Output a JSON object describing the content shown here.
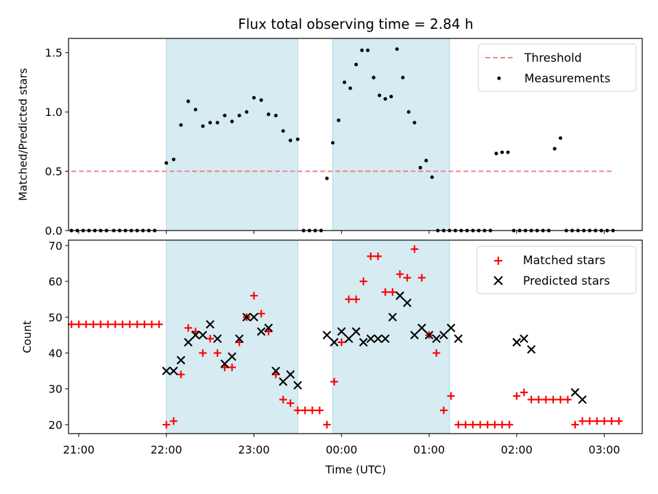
{
  "chart_data": [
    {
      "type": "scatter",
      "title": "Flux total observing time = 2.84 h",
      "xlabel": "",
      "ylabel": "Matched/Predicted stars",
      "ylim": [
        0,
        1.62
      ],
      "yticks": [
        0.0,
        0.5,
        1.0,
        1.5
      ],
      "ytick_labels": [
        "0.0",
        "0.5",
        "1.0",
        "1.5"
      ],
      "xlim": [
        "20:53",
        "03:26"
      ],
      "xticks": [
        "21:00",
        "22:00",
        "23:00",
        "00:00",
        "01:00",
        "02:00",
        "03:00"
      ],
      "x_unit": "time (UTC), hours before midnight shown as 21:00-23:59, after as 00:00-03:26",
      "grid": false,
      "legend": "top-right",
      "shaded_intervals": [
        [
          "22:00",
          "23:30"
        ],
        [
          "23:54",
          "01:14"
        ]
      ],
      "colors": {
        "threshold": "#f08080",
        "measurements": "#000000",
        "shade": "#add8e6"
      },
      "series": [
        {
          "name": "Threshold",
          "style": "dashed-line",
          "x": [
            "20:55",
            "03:05"
          ],
          "y": [
            0.5,
            0.5
          ]
        },
        {
          "name": "Measurements",
          "style": "dots",
          "x": [
            "20:55",
            "20:59",
            "21:03",
            "21:07",
            "21:11",
            "21:15",
            "21:19",
            "21:24",
            "21:28",
            "21:32",
            "21:36",
            "21:40",
            "21:44",
            "21:48",
            "21:52",
            "22:00",
            "22:05",
            "22:10",
            "22:15",
            "22:20",
            "22:25",
            "22:30",
            "22:35",
            "22:40",
            "22:45",
            "22:50",
            "22:55",
            "23:00",
            "23:05",
            "23:10",
            "23:15",
            "23:20",
            "23:25",
            "23:30",
            "23:34",
            "23:38",
            "23:42",
            "23:46",
            "23:50",
            "23:54",
            "23:58",
            "00:02",
            "00:06",
            "00:10",
            "00:14",
            "00:18",
            "00:22",
            "00:26",
            "00:30",
            "00:34",
            "00:38",
            "00:42",
            "00:46",
            "00:50",
            "00:54",
            "00:58",
            "01:02",
            "01:06",
            "01:10",
            "01:14",
            "01:18",
            "01:22",
            "01:26",
            "01:30",
            "01:34",
            "01:38",
            "01:42",
            "01:46",
            "01:50",
            "01:54",
            "01:58",
            "02:02",
            "02:06",
            "02:10",
            "02:14",
            "02:18",
            "02:22",
            "02:26",
            "02:30",
            "02:34",
            "02:38",
            "02:42",
            "02:46",
            "02:50",
            "02:54",
            "02:58",
            "03:02",
            "03:06"
          ],
          "y": [
            0,
            0,
            0,
            0,
            0,
            0,
            0,
            0,
            0,
            0,
            0,
            0,
            0,
            0,
            0,
            0.57,
            0.6,
            0.89,
            1.09,
            1.02,
            0.88,
            0.91,
            0.91,
            0.97,
            0.92,
            0.97,
            1.0,
            1.12,
            1.1,
            0.98,
            0.97,
            0.84,
            0.76,
            0.77,
            0,
            0,
            0,
            0,
            0.44,
            0.74,
            0.93,
            1.25,
            1.2,
            1.4,
            1.52,
            1.52,
            1.29,
            1.14,
            1.11,
            1.13,
            1.53,
            1.29,
            1.0,
            0.91,
            0.53,
            0.59,
            0.45,
            0,
            0,
            0,
            0,
            0,
            0,
            0,
            0,
            0,
            0,
            0.65,
            0.66,
            0.66,
            0,
            0,
            0,
            0,
            0,
            0,
            0,
            0.69,
            0.78,
            0,
            0,
            0,
            0,
            0,
            0,
            0,
            0,
            0
          ]
        }
      ]
    },
    {
      "type": "scatter",
      "title": "",
      "xlabel": "Time (UTC)",
      "ylabel": "Count",
      "ylim": [
        17.5,
        71.5
      ],
      "yticks": [
        20,
        30,
        40,
        50,
        60,
        70
      ],
      "ytick_labels": [
        "20",
        "30",
        "40",
        "50",
        "60",
        "70"
      ],
      "xlim": [
        "20:53",
        "03:26"
      ],
      "xticks": [
        "21:00",
        "22:00",
        "23:00",
        "00:00",
        "01:00",
        "02:00",
        "03:00"
      ],
      "xtick_labels": [
        "21:00",
        "22:00",
        "23:00",
        "00:00",
        "01:00",
        "02:00",
        "03:00"
      ],
      "grid": false,
      "legend": "top-right",
      "shaded_intervals": [
        [
          "22:00",
          "23:30"
        ],
        [
          "23:54",
          "01:14"
        ]
      ],
      "colors": {
        "matched": "#ff0000",
        "predicted": "#000000",
        "shade": "#add8e6"
      },
      "series": [
        {
          "name": "Matched stars",
          "marker": "plus",
          "x": [
            "20:55",
            "21:00",
            "21:05",
            "21:10",
            "21:15",
            "21:20",
            "21:25",
            "21:30",
            "21:35",
            "21:40",
            "21:45",
            "21:50",
            "21:55",
            "22:00",
            "22:05",
            "22:10",
            "22:15",
            "22:20",
            "22:25",
            "22:30",
            "22:35",
            "22:40",
            "22:45",
            "22:50",
            "22:55",
            "23:00",
            "23:05",
            "23:10",
            "23:15",
            "23:20",
            "23:25",
            "23:30",
            "23:35",
            "23:40",
            "23:45",
            "23:50",
            "23:55",
            "00:00",
            "00:05",
            "00:10",
            "00:15",
            "00:20",
            "00:25",
            "00:30",
            "00:35",
            "00:40",
            "00:45",
            "00:50",
            "00:55",
            "01:00",
            "01:05",
            "01:10",
            "01:15",
            "01:20",
            "01:25",
            "01:30",
            "01:35",
            "01:40",
            "01:45",
            "01:50",
            "01:55",
            "02:00",
            "02:05",
            "02:10",
            "02:15",
            "02:20",
            "02:25",
            "02:30",
            "02:35",
            "02:40",
            "02:45",
            "02:50",
            "02:55",
            "03:00",
            "03:05",
            "03:10"
          ],
          "y": [
            48,
            48,
            48,
            48,
            48,
            48,
            48,
            48,
            48,
            48,
            48,
            48,
            48,
            20,
            21,
            34,
            47,
            46,
            40,
            44,
            40,
            36,
            36,
            43,
            50,
            56,
            51,
            46,
            34,
            27,
            26,
            24,
            24,
            24,
            24,
            20,
            32,
            43,
            55,
            55,
            60,
            67,
            67,
            57,
            57,
            62,
            61,
            69,
            61,
            45,
            40,
            24,
            28,
            20,
            20,
            20,
            20,
            20,
            20,
            20,
            20,
            28,
            29,
            27,
            27,
            27,
            27,
            27,
            27,
            20,
            21,
            21,
            21,
            21,
            21,
            21
          ]
        },
        {
          "name": "Predicted stars",
          "marker": "x",
          "x": [
            "22:00",
            "22:05",
            "22:10",
            "22:15",
            "22:20",
            "22:25",
            "22:30",
            "22:35",
            "22:40",
            "22:45",
            "22:50",
            "22:55",
            "23:00",
            "23:05",
            "23:10",
            "23:15",
            "23:20",
            "23:25",
            "23:30",
            "23:50",
            "23:55",
            "00:00",
            "00:05",
            "00:10",
            "00:15",
            "00:20",
            "00:25",
            "00:30",
            "00:35",
            "00:40",
            "00:45",
            "00:50",
            "00:55",
            "01:00",
            "01:05",
            "01:10",
            "01:15",
            "01:20",
            "02:00",
            "02:05",
            "02:10",
            "02:40",
            "02:45"
          ],
          "y": [
            35,
            35,
            38,
            43,
            45,
            45,
            48,
            44,
            37,
            39,
            44,
            50,
            50,
            46,
            47,
            35,
            32,
            34,
            31,
            45,
            43,
            46,
            44,
            46,
            43,
            44,
            44,
            44,
            50,
            56,
            54,
            45,
            47,
            45,
            44,
            45,
            47,
            44,
            43,
            44,
            41,
            29,
            27
          ]
        }
      ]
    }
  ]
}
